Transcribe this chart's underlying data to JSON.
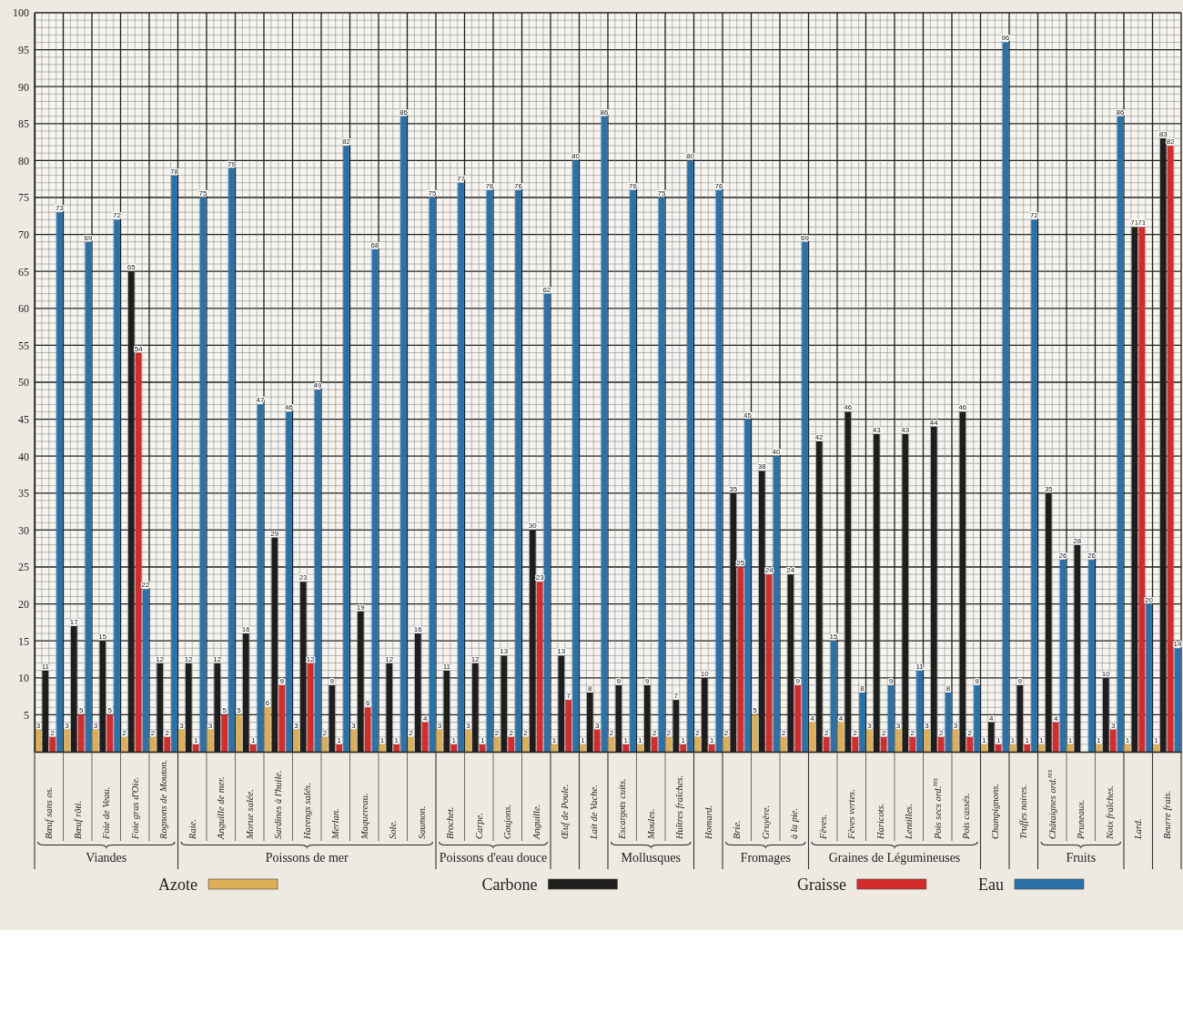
{
  "chart_data": {
    "type": "bar",
    "categories": [
      "Bœuf sans os.",
      "Bœuf rôti.",
      "Foie de Veau.",
      "Foie gras d'Oie.",
      "Rognons de Mouton.",
      "Raie.",
      "Anguille de mer.",
      "Morue salée.",
      "Sardines à l'huile.",
      "Harengs salés.",
      "Merlan.",
      "Maquereau.",
      "Sole.",
      "Saumon.",
      "Brochet.",
      "Carpe.",
      "Goujons.",
      "Anguille.",
      "Œuf de Poule.",
      "Lait de Vache.",
      "Escargots cuits.",
      "Moules.",
      "Huîtres fraîches.",
      "Homard.",
      "Brie.",
      "Gruyère.",
      "à la pie.",
      "Fèves.",
      "Fèves vertes.",
      "Haricots.",
      "Lentilles.",
      "Pois secs ord.$^{res}$",
      "Pois cassés.",
      "Champignons.",
      "Truffes noires.",
      "Châtaignes ord.$^{res}$",
      "Pruneaux.",
      "Noix fraîches.",
      "Lard.",
      "Beurre frais."
    ],
    "series": [
      {
        "name": "Azote",
        "color": "#dcae55",
        "values": [
          3,
          3,
          3,
          2,
          2,
          3,
          3,
          5,
          6,
          3,
          2,
          3,
          1,
          2,
          3,
          3,
          2,
          2,
          1,
          1,
          2,
          1,
          2,
          2,
          2,
          5,
          2,
          4,
          4,
          3,
          3,
          3,
          3,
          1,
          1,
          1,
          1,
          1,
          1,
          1
        ]
      },
      {
        "name": "Carbone",
        "color": "#1e1e1e",
        "values": [
          11,
          17,
          15,
          65,
          12,
          12,
          12,
          16,
          29,
          23,
          9,
          19,
          12,
          16,
          11,
          12,
          13,
          30,
          13,
          8,
          9,
          9,
          7,
          10,
          35,
          38,
          24,
          42,
          46,
          43,
          43,
          44,
          46,
          4,
          9,
          35,
          28,
          10,
          71,
          83
        ]
      },
      {
        "name": "Graisse",
        "color": "#d62b2b",
        "values": [
          2,
          5,
          5,
          54,
          2,
          1,
          5,
          1,
          9,
          12,
          1,
          6,
          1,
          4,
          1,
          1,
          2,
          23,
          7,
          3,
          1,
          2,
          1,
          1,
          25,
          24,
          9,
          2,
          2,
          2,
          2,
          2,
          2,
          1,
          1,
          4,
          null,
          3,
          71,
          82
        ]
      },
      {
        "name": "Eau",
        "color": "#2a72aa",
        "values": [
          73,
          69,
          72,
          22,
          78,
          75,
          79,
          47,
          46,
          49,
          82,
          68,
          86,
          75,
          77,
          76,
          76,
          62,
          80,
          86,
          76,
          75,
          80,
          76,
          45,
          40,
          69,
          15,
          8,
          9,
          11,
          8,
          9,
          96,
          72,
          26,
          26,
          86,
          20,
          14
        ]
      }
    ],
    "annotations": [
      "Viandes",
      "Poissons de mer",
      "Poissons d'eau douce",
      "Mollusques",
      "Fromages",
      "Graines de Légumineuses",
      "Fruits"
    ],
    "ylim": [
      0,
      100
    ],
    "yticks": [
      {
        "value": 1,
        "label": null
      },
      {
        "value": 2,
        "label": null
      },
      {
        "value": 3,
        "label": null
      },
      {
        "value": 4,
        "label": null
      },
      5,
      {
        "value": 6,
        "label": null
      },
      {
        "value": 7,
        "label": null
      },
      {
        "value": 8,
        "label": null
      },
      {
        "value": 9,
        "label": null
      },
      10,
      {
        "value": 11,
        "label": null
      },
      {
        "value": 12,
        "label": null
      },
      {
        "value": 13,
        "label": null
      },
      {
        "value": 14,
        "label": null
      },
      15,
      {
        "value": 16,
        "label": null
      },
      {
        "value": 17,
        "label": null
      },
      {
        "value": 18,
        "label": null
      },
      {
        "value": 19,
        "label": null
      },
      20,
      {
        "value": 21,
        "label": null
      },
      {
        "value": 22,
        "label": null
      },
      {
        "value": 23,
        "label": null
      },
      {
        "value": 24,
        "label": null
      },
      25,
      {
        "value": 26,
        "label": null
      },
      {
        "value": 27,
        "label": null
      },
      {
        "value": 28,
        "label": null
      },
      {
        "value": 29,
        "label": null
      },
      30,
      {
        "value": 31,
        "label": null
      },
      {
        "value": 32,
        "label": null
      },
      {
        "value": 33,
        "label": null
      },
      {
        "value": 34,
        "label": null
      },
      35,
      {
        "value": 36,
        "label": null
      },
      {
        "value": 37,
        "label": null
      },
      {
        "value": 38,
        "label": null
      },
      {
        "value": 39,
        "label": null
      },
      40,
      {
        "value": 41,
        "label": null
      },
      {
        "value": 42,
        "label": null
      },
      {
        "value": 43,
        "label": null
      },
      {
        "value": 44,
        "label": null
      },
      45,
      {
        "value": 46,
        "label": null
      },
      {
        "value": 47,
        "label": null
      },
      {
        "value": 48,
        "label": null
      },
      {
        "value": 49,
        "label": null
      },
      50,
      {
        "value": 51,
        "label": null
      },
      {
        "value": 52,
        "label": null
      },
      {
        "value": 53,
        "label": null
      },
      {
        "value": 54,
        "label": null
      },
      55,
      {
        "value": 56,
        "label": null
      },
      {
        "value": 57,
        "label": null
      },
      {
        "value": 58,
        "label": null
      },
      {
        "value": 59,
        "label": null
      },
      60,
      {
        "value": 61,
        "label": null
      },
      {
        "value": 62,
        "label": null
      },
      {
        "value": 63,
        "label": null
      },
      {
        "value": 64,
        "label": null
      },
      65,
      {
        "value": 66,
        "label": null
      },
      {
        "value": 67,
        "label": null
      },
      {
        "value": 68,
        "label": null
      },
      {
        "value": 69,
        "label": null
      },
      70,
      {
        "value": 71,
        "label": null
      },
      {
        "value": 72,
        "label": null
      },
      {
        "value": 73,
        "label": null
      },
      {
        "value": 74,
        "label": null
      },
      75,
      {
        "value": 76,
        "label": null
      },
      {
        "value": 77,
        "label": null
      },
      {
        "value": 78,
        "label": null
      },
      {
        "value": 79,
        "label": null
      },
      80,
      {
        "value": 81,
        "label": null
      },
      {
        "value": 82,
        "label": null
      },
      {
        "value": 83,
        "label": null
      },
      {
        "value": 84,
        "label": null
      },
      85,
      {
        "value": 86,
        "label": null
      },
      {
        "value": 87,
        "label": null
      },
      {
        "value": 88,
        "label": null
      },
      {
        "value": 89,
        "label": null
      },
      90,
      {
        "value": 91,
        "label": null
      },
      {
        "value": 92,
        "label": null
      },
      {
        "value": 93,
        "label": null
      },
      {
        "value": 94,
        "label": null
      },
      95,
      {
        "value": 96,
        "label": null
      },
      {
        "value": 97,
        "label": null
      },
      {
        "value": 98,
        "label": null
      },
      {
        "value": 99,
        "label": null
      },
      100
    ],
    "grid": true,
    "data_labels": true,
    "legend": "bottom"
  }
}
